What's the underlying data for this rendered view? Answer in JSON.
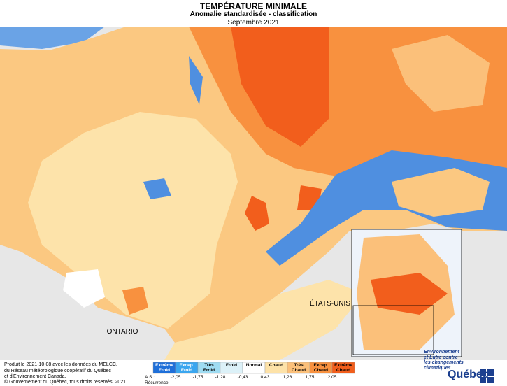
{
  "header": {
    "title": "TEMPÉRATURE MINIMALE",
    "subtitle": "Anomalie standardisée - classification",
    "date": "Septembre 2021"
  },
  "map": {
    "labels": [
      "ONTARIO",
      "ÉTATS-UNIS"
    ]
  },
  "legend": {
    "classes": [
      {
        "label": "Extrême Froid",
        "color": "#1e6fd9"
      },
      {
        "label": "Excep. Froid",
        "color": "#3aa6ef"
      },
      {
        "label": "Très Froid",
        "color": "#9fdcf2"
      },
      {
        "label": "Froid",
        "color": "#dcf1f8"
      },
      {
        "label": "Normal",
        "color": "#ffffff"
      },
      {
        "label": "Chaud",
        "color": "#fde2a8"
      },
      {
        "label": "Très Chaud",
        "color": "#fbc07a"
      },
      {
        "label": "Excep. Chaud",
        "color": "#f8913f"
      },
      {
        "label": "Extrême Chaud",
        "color": "#f25e1c"
      }
    ],
    "thresholds": [
      "-2,05",
      "-1,75",
      "-1,28",
      "-0,43",
      "0,43",
      "1,28",
      "1,75",
      "2,05"
    ],
    "as_label": "A.S.:",
    "recurrence_label": "Récurrence:"
  },
  "footer": {
    "lines": [
      "Produit le 2021-10-08 avec les données du MELCC,",
      "du Réseau météorologique coopératif du Québec",
      "et d'Environnement Canada."
    ],
    "copyright": "© Gouvernement du Québec, tous droits réservés, 2021"
  },
  "logo": {
    "lines": [
      "Environnement",
      "et Lutte contre",
      "les changements",
      "climatiques"
    ],
    "name": "Québec"
  }
}
